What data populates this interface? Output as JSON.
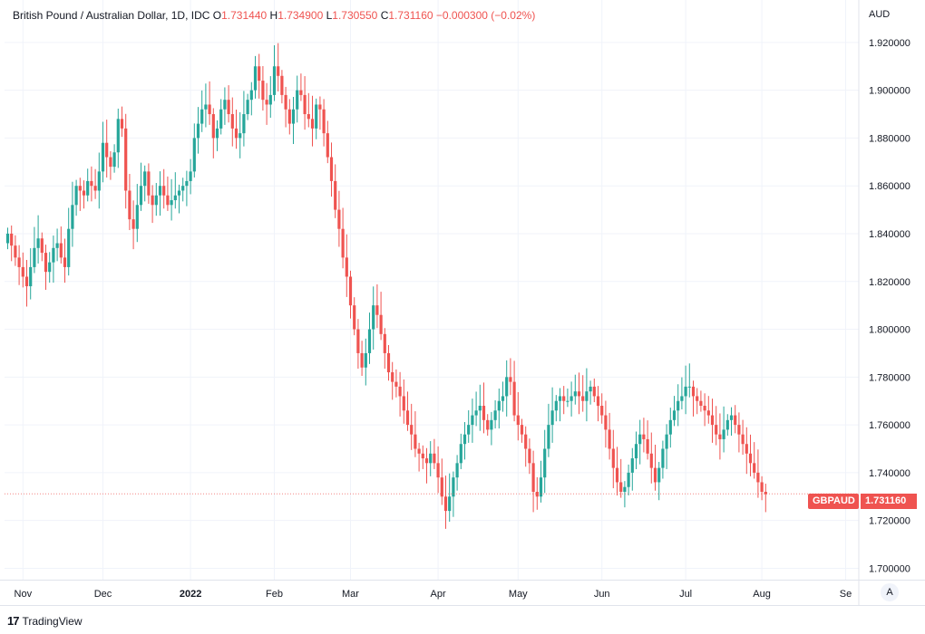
{
  "legend": {
    "symbol": "British Pound / Australian Dollar, 1D, IDC",
    "o_label": "O",
    "o": "1.731440",
    "h_label": "H",
    "h": "1.734900",
    "l_label": "L",
    "l": "1.730550",
    "c_label": "C",
    "c": "1.731160",
    "change": "−0.000300 (−0.02%)"
  },
  "price_axis": {
    "unit": "AUD"
  },
  "last_price": {
    "symbol": "GBPAUD",
    "value": "1.731160",
    "color": "#ef5350"
  },
  "auto_scale_label": "A",
  "brand": {
    "logo": "17",
    "name": "TradingView"
  },
  "colors": {
    "up": "#26a69a",
    "down": "#ef5350",
    "grid": "#f0f3fa",
    "axis_text": "#131722"
  },
  "chart_data": {
    "type": "candlestick",
    "title": "",
    "y_ticks": [
      "1.700000",
      "1.720000",
      "1.740000",
      "1.760000",
      "1.780000",
      "1.800000",
      "1.820000",
      "1.840000",
      "1.860000",
      "1.880000",
      "1.900000",
      "1.920000"
    ],
    "ylim": [
      1.69525,
      1.93775
    ],
    "x_ticks": [
      {
        "label": "Nov",
        "index": 4
      },
      {
        "label": "Dec",
        "index": 25
      },
      {
        "label": "2022",
        "index": 48,
        "bold": true
      },
      {
        "label": "Feb",
        "index": 70
      },
      {
        "label": "Mar",
        "index": 90
      },
      {
        "label": "Apr",
        "index": 113
      },
      {
        "label": "May",
        "index": 134
      },
      {
        "label": "Jun",
        "index": 156
      },
      {
        "label": "Jul",
        "index": 178
      },
      {
        "label": "Aug",
        "index": 198
      },
      {
        "label": "Se",
        "index": 220
      }
    ],
    "grid": true,
    "closes": [
      1.84,
      1.835,
      1.83,
      1.826,
      1.822,
      1.818,
      1.826,
      1.834,
      1.838,
      1.832,
      1.824,
      1.828,
      1.834,
      1.836,
      1.83,
      1.826,
      1.842,
      1.852,
      1.86,
      1.858,
      1.856,
      1.862,
      1.86,
      1.858,
      1.866,
      1.878,
      1.872,
      1.868,
      1.874,
      1.888,
      1.884,
      1.858,
      1.846,
      1.842,
      1.852,
      1.86,
      1.866,
      1.856,
      1.852,
      1.856,
      1.86,
      1.856,
      1.852,
      1.854,
      1.856,
      1.858,
      1.86,
      1.862,
      1.866,
      1.88,
      1.886,
      1.892,
      1.894,
      1.89,
      1.88,
      1.884,
      1.892,
      1.896,
      1.89,
      1.884,
      1.88,
      1.882,
      1.89,
      1.896,
      1.9,
      1.91,
      1.904,
      1.896,
      1.894,
      1.898,
      1.91,
      1.906,
      1.898,
      1.892,
      1.886,
      1.892,
      1.9,
      1.898,
      1.89,
      1.888,
      1.884,
      1.894,
      1.892,
      1.882,
      1.872,
      1.862,
      1.85,
      1.842,
      1.83,
      1.822,
      1.81,
      1.8,
      1.79,
      1.784,
      1.79,
      1.8,
      1.81,
      1.806,
      1.798,
      1.79,
      1.782,
      1.778,
      1.776,
      1.772,
      1.766,
      1.76,
      1.756,
      1.75,
      1.748,
      1.746,
      1.744,
      1.748,
      1.744,
      1.738,
      1.73,
      1.724,
      1.73,
      1.738,
      1.744,
      1.752,
      1.756,
      1.76,
      1.764,
      1.766,
      1.768,
      1.762,
      1.758,
      1.762,
      1.766,
      1.77,
      1.772,
      1.78,
      1.778,
      1.764,
      1.76,
      1.756,
      1.75,
      1.744,
      1.732,
      1.73,
      1.738,
      1.75,
      1.76,
      1.766,
      1.77,
      1.772,
      1.77,
      1.77,
      1.772,
      1.774,
      1.772,
      1.77,
      1.774,
      1.776,
      1.772,
      1.768,
      1.764,
      1.758,
      1.75,
      1.742,
      1.736,
      1.732,
      1.734,
      1.74,
      1.746,
      1.752,
      1.756,
      1.754,
      1.748,
      1.742,
      1.736,
      1.742,
      1.75,
      1.756,
      1.762,
      1.766,
      1.77,
      1.772,
      1.776,
      1.776,
      1.772,
      1.77,
      1.768,
      1.766,
      1.764,
      1.76,
      1.756,
      1.754,
      1.758,
      1.762,
      1.764,
      1.76,
      1.756,
      1.752,
      1.748,
      1.744,
      1.74,
      1.736,
      1.732,
      1.731
    ],
    "last_close": 1.73116
  }
}
